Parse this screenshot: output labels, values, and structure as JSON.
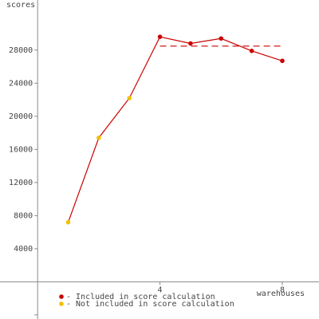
{
  "chart_data": {
    "type": "line",
    "y_label": "scores",
    "x_label": "warehouses",
    "x": [
      1,
      2,
      3,
      4,
      5,
      6,
      7,
      8
    ],
    "values": [
      7200,
      17400,
      22200,
      29600,
      28800,
      29400,
      27900,
      26700
    ],
    "included": [
      false,
      false,
      false,
      true,
      true,
      true,
      true,
      true
    ],
    "line_color": "#cc0000",
    "markers": [
      {
        "name": "- Included in score calculation",
        "color": "#cc0000"
      },
      {
        "name": "- Not included in score calculation",
        "color": "#f0c000"
      }
    ],
    "score_line": {
      "value": 28480,
      "from": 4,
      "to": 8,
      "color": "#cc0000"
    },
    "xlim": [
      -1.23,
      9.2
    ],
    "ylim": [
      -4490,
      34050
    ],
    "xticks": [
      4,
      8
    ],
    "yticks": [
      4000,
      8000,
      12000,
      16000,
      20000,
      24000,
      28000
    ],
    "unlabeled_yticks": [
      -4000
    ],
    "axis_color": "#888888"
  }
}
